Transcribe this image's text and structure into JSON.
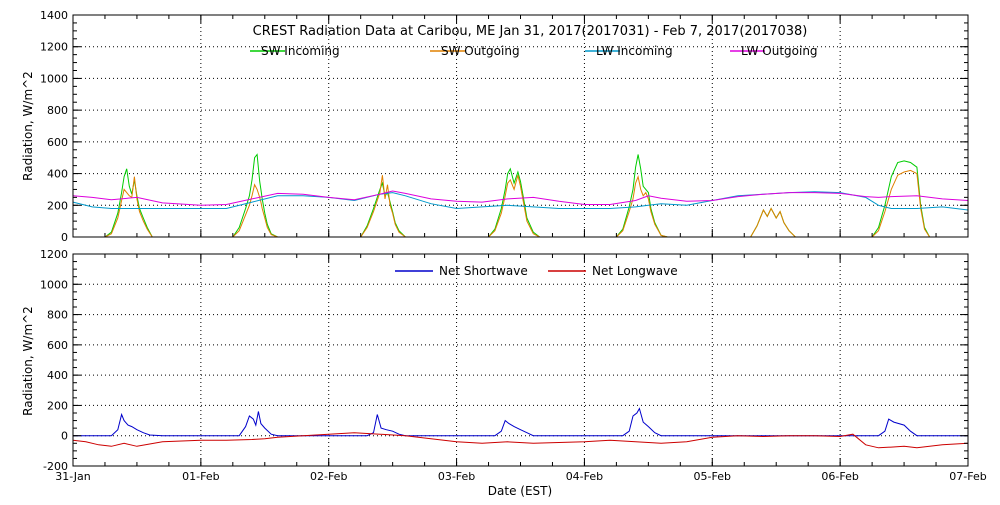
{
  "chart_data": [
    {
      "type": "line",
      "title": "CREST Radiation Data at Caribou, ME   Jan 31, 2017(2017031) - Feb  7, 2017(2017038)",
      "ylabel": "Radiation, W/m^2",
      "xlabel": "",
      "ylim": [
        0,
        1400
      ],
      "yticks": [
        0,
        200,
        400,
        600,
        800,
        1000,
        1200,
        1400
      ],
      "grid": true,
      "legend_position": "top",
      "series": [
        {
          "name": "SW Incoming",
          "color": "#00cc00",
          "x": [
            0.0,
            0.25,
            0.3,
            0.35,
            0.38,
            0.4,
            0.42,
            0.44,
            0.46,
            0.48,
            0.5,
            0.52,
            0.55,
            0.58,
            0.62,
            0.66,
            0.7,
            1.0,
            1.25,
            1.3,
            1.35,
            1.38,
            1.4,
            1.42,
            1.44,
            1.46,
            1.47,
            1.48,
            1.5,
            1.52,
            1.55,
            1.6,
            1.65,
            1.7,
            2.0,
            2.25,
            2.3,
            2.35,
            2.4,
            2.42,
            2.44,
            2.46,
            2.48,
            2.5,
            2.52,
            2.55,
            2.6,
            2.65,
            2.7,
            3.0,
            3.25,
            3.3,
            3.35,
            3.38,
            3.4,
            3.42,
            3.45,
            3.48,
            3.5,
            3.52,
            3.55,
            3.6,
            3.65,
            3.7,
            4.0,
            4.25,
            4.3,
            4.35,
            4.38,
            4.4,
            4.42,
            4.44,
            4.46,
            4.48,
            4.5,
            4.52,
            4.55,
            4.6,
            4.65,
            4.7,
            5.0,
            5.25,
            5.3,
            5.35,
            5.4,
            5.43,
            5.46,
            5.5,
            5.53,
            5.56,
            5.6,
            5.65,
            5.7,
            6.0,
            6.25,
            6.3,
            6.35,
            6.4,
            6.45,
            6.5,
            6.55,
            6.6,
            6.63,
            6.66,
            6.7,
            7.0
          ],
          "values": [
            0,
            0,
            30,
            150,
            280,
            380,
            430,
            320,
            270,
            360,
            260,
            180,
            120,
            60,
            0,
            0,
            0,
            0,
            0,
            60,
            180,
            260,
            360,
            500,
            520,
            350,
            300,
            240,
            150,
            80,
            20,
            0,
            0,
            0,
            0,
            0,
            70,
            180,
            300,
            340,
            260,
            280,
            220,
            160,
            90,
            40,
            0,
            0,
            0,
            0,
            0,
            50,
            180,
            300,
            400,
            430,
            340,
            410,
            350,
            260,
            120,
            30,
            0,
            0,
            0,
            0,
            50,
            190,
            300,
            440,
            520,
            430,
            320,
            300,
            280,
            180,
            90,
            10,
            0,
            0,
            0,
            0,
            0,
            70,
            170,
            130,
            180,
            120,
            160,
            90,
            40,
            0,
            0,
            0,
            0,
            60,
            200,
            380,
            470,
            480,
            470,
            440,
            200,
            60,
            0,
            0
          ]
        },
        {
          "name": "SW Outgoing",
          "color": "#e08000",
          "x": [
            0.0,
            0.25,
            0.3,
            0.35,
            0.38,
            0.4,
            0.42,
            0.44,
            0.46,
            0.48,
            0.5,
            0.52,
            0.55,
            0.58,
            0.62,
            0.66,
            0.7,
            1.0,
            1.25,
            1.3,
            1.35,
            1.38,
            1.4,
            1.42,
            1.44,
            1.46,
            1.47,
            1.48,
            1.5,
            1.52,
            1.55,
            1.6,
            1.65,
            1.7,
            2.0,
            2.25,
            2.3,
            2.35,
            2.4,
            2.42,
            2.44,
            2.46,
            2.48,
            2.5,
            2.52,
            2.55,
            2.6,
            2.65,
            2.7,
            3.0,
            3.25,
            3.3,
            3.35,
            3.38,
            3.4,
            3.42,
            3.45,
            3.48,
            3.5,
            3.52,
            3.55,
            3.6,
            3.65,
            3.7,
            4.0,
            4.25,
            4.3,
            4.35,
            4.38,
            4.4,
            4.42,
            4.44,
            4.46,
            4.48,
            4.5,
            4.52,
            4.55,
            4.6,
            4.65,
            4.7,
            5.0,
            5.25,
            5.3,
            5.35,
            5.4,
            5.43,
            5.46,
            5.5,
            5.53,
            5.56,
            5.6,
            5.65,
            5.7,
            6.0,
            6.25,
            6.3,
            6.35,
            6.4,
            6.45,
            6.5,
            6.55,
            6.6,
            6.63,
            6.66,
            6.7,
            7.0
          ],
          "values": [
            0,
            0,
            20,
            120,
            230,
            300,
            280,
            260,
            250,
            380,
            240,
            160,
            100,
            50,
            0,
            0,
            0,
            0,
            0,
            40,
            140,
            200,
            260,
            330,
            300,
            250,
            220,
            180,
            120,
            60,
            15,
            0,
            0,
            0,
            0,
            0,
            60,
            160,
            280,
            390,
            240,
            330,
            200,
            150,
            80,
            30,
            0,
            0,
            0,
            0,
            0,
            40,
            150,
            260,
            340,
            360,
            300,
            390,
            320,
            230,
            100,
            20,
            0,
            0,
            0,
            0,
            40,
            160,
            240,
            340,
            380,
            300,
            260,
            280,
            240,
            160,
            80,
            10,
            0,
            0,
            0,
            0,
            0,
            70,
            170,
            130,
            180,
            120,
            160,
            90,
            40,
            0,
            0,
            0,
            0,
            40,
            160,
            300,
            390,
            410,
            420,
            400,
            180,
            50,
            0,
            0
          ]
        },
        {
          "name": "LW Incoming",
          "color": "#0099cc",
          "x": [
            0.0,
            0.15,
            0.3,
            0.5,
            0.7,
            1.0,
            1.2,
            1.4,
            1.6,
            1.8,
            2.0,
            2.2,
            2.4,
            2.5,
            2.6,
            2.8,
            3.0,
            3.2,
            3.4,
            3.6,
            3.8,
            4.0,
            4.2,
            4.4,
            4.5,
            4.6,
            4.8,
            5.0,
            5.2,
            5.4,
            5.6,
            5.8,
            6.0,
            6.2,
            6.3,
            6.4,
            6.6,
            6.8,
            7.0
          ],
          "values": [
            220,
            190,
            180,
            180,
            180,
            180,
            180,
            220,
            260,
            260,
            250,
            230,
            270,
            280,
            260,
            210,
            180,
            190,
            200,
            190,
            180,
            180,
            180,
            190,
            200,
            210,
            200,
            230,
            260,
            270,
            280,
            285,
            280,
            250,
            200,
            180,
            180,
            190,
            170
          ]
        },
        {
          "name": "LW Outgoing",
          "color": "#dd00dd",
          "x": [
            0.0,
            0.15,
            0.3,
            0.5,
            0.7,
            1.0,
            1.2,
            1.4,
            1.6,
            1.8,
            2.0,
            2.2,
            2.4,
            2.5,
            2.6,
            2.8,
            3.0,
            3.2,
            3.4,
            3.6,
            3.8,
            4.0,
            4.2,
            4.4,
            4.5,
            4.6,
            4.8,
            5.0,
            5.2,
            5.4,
            5.6,
            5.8,
            6.0,
            6.2,
            6.3,
            6.4,
            6.6,
            6.8,
            7.0
          ],
          "values": [
            260,
            250,
            235,
            250,
            215,
            200,
            205,
            240,
            275,
            270,
            250,
            235,
            270,
            290,
            275,
            240,
            225,
            220,
            240,
            250,
            225,
            205,
            205,
            230,
            260,
            245,
            225,
            230,
            255,
            270,
            280,
            280,
            275,
            255,
            250,
            255,
            260,
            240,
            230
          ]
        }
      ]
    },
    {
      "type": "line",
      "title": "",
      "ylabel": "Radiation, W/m^2",
      "xlabel": "Date (EST)",
      "ylim": [
        -200,
        1200
      ],
      "yticks": [
        -200,
        0,
        200,
        400,
        600,
        800,
        1000,
        1200
      ],
      "grid": true,
      "legend_position": "top",
      "x_ticks": [
        {
          "x": 0,
          "label": "31-Jan"
        },
        {
          "x": 1,
          "label": "01-Feb"
        },
        {
          "x": 2,
          "label": "02-Feb"
        },
        {
          "x": 3,
          "label": "03-Feb"
        },
        {
          "x": 4,
          "label": "04-Feb"
        },
        {
          "x": 5,
          "label": "05-Feb"
        },
        {
          "x": 6,
          "label": "06-Feb"
        },
        {
          "x": 7,
          "label": "07-Feb"
        }
      ],
      "series": [
        {
          "name": "Net Shortwave",
          "color": "#0000cc",
          "x": [
            0.0,
            0.3,
            0.35,
            0.38,
            0.4,
            0.43,
            0.46,
            0.5,
            0.55,
            0.6,
            0.7,
            1.0,
            1.3,
            1.35,
            1.38,
            1.41,
            1.43,
            1.45,
            1.47,
            1.5,
            1.55,
            1.6,
            2.0,
            2.3,
            2.35,
            2.38,
            2.41,
            2.45,
            2.5,
            2.55,
            2.6,
            3.0,
            3.3,
            3.35,
            3.38,
            3.41,
            3.45,
            3.5,
            3.55,
            3.6,
            4.0,
            4.3,
            4.35,
            4.38,
            4.41,
            4.43,
            4.46,
            4.5,
            4.55,
            4.6,
            5.0,
            6.0,
            6.3,
            6.35,
            6.38,
            6.42,
            6.5,
            6.55,
            6.6,
            7.0
          ],
          "values": [
            0,
            0,
            40,
            140,
            100,
            70,
            60,
            40,
            20,
            5,
            0,
            0,
            0,
            60,
            130,
            110,
            70,
            160,
            80,
            50,
            10,
            0,
            0,
            0,
            20,
            140,
            50,
            40,
            30,
            10,
            0,
            0,
            0,
            30,
            100,
            80,
            60,
            40,
            20,
            0,
            0,
            0,
            30,
            130,
            150,
            180,
            90,
            60,
            20,
            0,
            0,
            0,
            0,
            30,
            110,
            90,
            70,
            30,
            0,
            0
          ]
        },
        {
          "name": "Net Longwave",
          "color": "#cc0000",
          "x": [
            0.0,
            0.1,
            0.2,
            0.3,
            0.4,
            0.5,
            0.6,
            0.7,
            0.85,
            1.0,
            1.2,
            1.4,
            1.5,
            1.6,
            1.8,
            2.0,
            2.2,
            2.4,
            2.6,
            2.8,
            3.0,
            3.2,
            3.4,
            3.6,
            3.8,
            4.0,
            4.2,
            4.4,
            4.6,
            4.8,
            5.0,
            5.2,
            5.4,
            5.6,
            5.8,
            6.0,
            6.1,
            6.2,
            6.3,
            6.4,
            6.5,
            6.6,
            6.8,
            7.0
          ],
          "values": [
            -30,
            -40,
            -60,
            -70,
            -50,
            -70,
            -55,
            -40,
            -35,
            -30,
            -30,
            -25,
            -20,
            -10,
            0,
            10,
            20,
            10,
            0,
            -20,
            -40,
            -50,
            -40,
            -50,
            -45,
            -40,
            -30,
            -40,
            -50,
            -40,
            -10,
            0,
            -5,
            0,
            0,
            -5,
            10,
            -60,
            -80,
            -75,
            -70,
            -80,
            -60,
            -50
          ]
        }
      ]
    }
  ]
}
